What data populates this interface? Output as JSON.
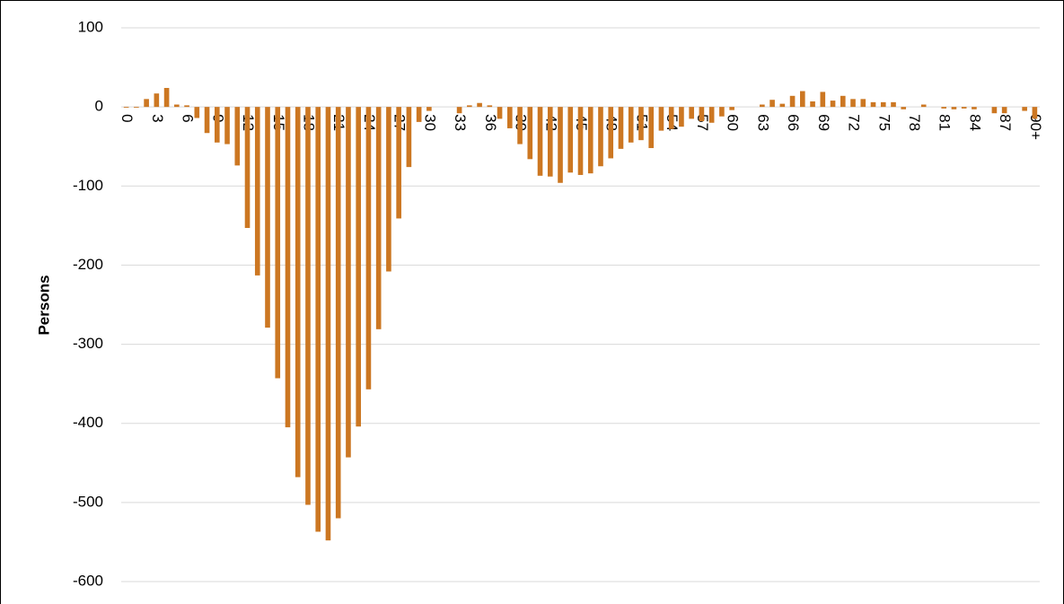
{
  "chart_data": {
    "type": "bar",
    "y_label": "Persons",
    "categories": [
      "0",
      null,
      null,
      "3",
      null,
      null,
      "6",
      null,
      null,
      "9",
      null,
      null,
      "12",
      null,
      null,
      "15",
      null,
      null,
      "18",
      null,
      null,
      "21",
      null,
      null,
      "24",
      null,
      null,
      "27",
      null,
      null,
      "30",
      null,
      null,
      "33",
      null,
      null,
      "36",
      null,
      null,
      "39",
      null,
      null,
      "42",
      null,
      null,
      "45",
      null,
      null,
      "48",
      null,
      null,
      "51",
      null,
      null,
      "54",
      null,
      null,
      "57",
      null,
      null,
      "60",
      null,
      null,
      "63",
      null,
      null,
      "66",
      null,
      null,
      "69",
      null,
      null,
      "72",
      null,
      null,
      "75",
      null,
      null,
      "78",
      null,
      null,
      "81",
      null,
      null,
      "84",
      null,
      null,
      "87",
      null,
      null,
      "90+"
    ],
    "values": [
      -1,
      -1,
      10,
      17,
      24,
      3,
      2,
      -14,
      -33,
      -45,
      -47,
      -74,
      -153,
      -213,
      -279,
      -343,
      -405,
      -468,
      -503,
      -537,
      -548,
      -520,
      -443,
      -404,
      -357,
      -281,
      -208,
      -141,
      -76,
      -19,
      -5,
      0,
      0,
      -8,
      2,
      5,
      2,
      -15,
      -27,
      -47,
      -66,
      -87,
      -88,
      -96,
      -83,
      -86,
      -84,
      -75,
      -65,
      -53,
      -45,
      -42,
      -52,
      -30,
      -28,
      -25,
      -15,
      -18,
      -20,
      -12,
      -4,
      0,
      0,
      3,
      9,
      4,
      14,
      20,
      7,
      19,
      8,
      14,
      10,
      10,
      6,
      6,
      6,
      -3,
      0,
      3,
      0,
      -2,
      -3,
      -2,
      -3,
      0,
      -8,
      -8,
      0,
      -5,
      -15
    ],
    "color": "#cc7722",
    "ylim": [
      -600,
      100
    ],
    "yticks": [
      100,
      0,
      -100,
      -200,
      -300,
      -400,
      -500,
      -600
    ],
    "grid": true
  }
}
